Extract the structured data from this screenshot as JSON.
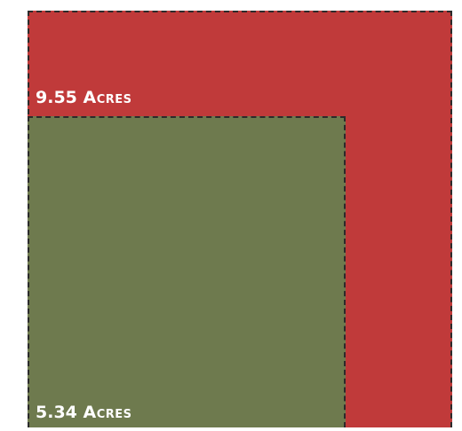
{
  "areas": [
    {
      "value": "9.55",
      "unit": "Acres",
      "color": "#c03a3a"
    },
    {
      "value": "5.34",
      "unit": "Acres",
      "color": "#6e7a4e"
    }
  ],
  "border_color": "#2b2b2b"
}
